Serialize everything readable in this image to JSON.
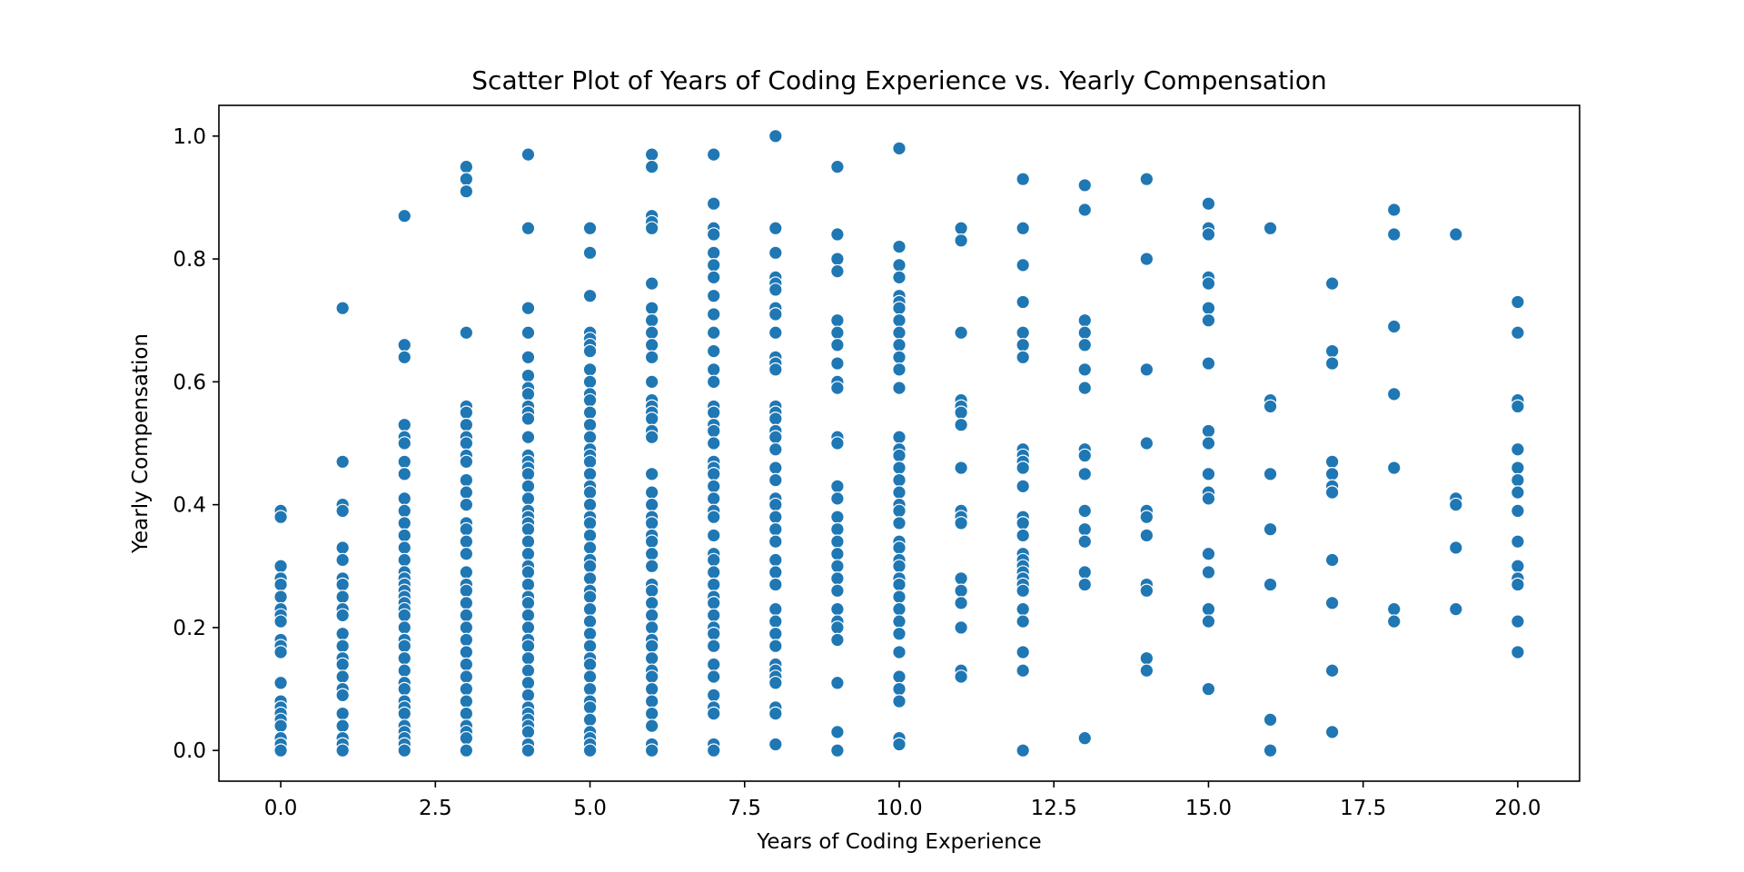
{
  "chart_data": {
    "type": "scatter",
    "title": "Scatter Plot of Years of Coding Experience vs. Yearly Compensation",
    "xlabel": "Years of Coding Experience",
    "ylabel": "Yearly Compensation",
    "xlim": [
      -1,
      21
    ],
    "ylim": [
      -0.05,
      1.05
    ],
    "x_ticks": [
      0.0,
      2.5,
      5.0,
      7.5,
      10.0,
      12.5,
      15.0,
      17.5,
      20.0
    ],
    "x_tick_labels": [
      "0.0",
      "2.5",
      "5.0",
      "7.5",
      "10.0",
      "12.5",
      "15.0",
      "17.5",
      "20.0"
    ],
    "y_ticks": [
      0.0,
      0.2,
      0.4,
      0.6,
      0.8,
      1.0
    ],
    "y_tick_labels": [
      "0.0",
      "0.2",
      "0.4",
      "0.6",
      "0.8",
      "1.0"
    ],
    "grid": false,
    "marker_color": "#1f77b4",
    "marker_edge_color": "#ffffff",
    "points_by_x": [
      {
        "x": 0,
        "y": [
          0.39,
          0.38,
          0.3,
          0.28,
          0.27,
          0.25,
          0.23,
          0.22,
          0.21,
          0.18,
          0.17,
          0.16,
          0.11,
          0.08,
          0.07,
          0.06,
          0.05,
          0.04,
          0.02,
          0.01,
          0.0
        ]
      },
      {
        "x": 1,
        "y": [
          0.72,
          0.47,
          0.4,
          0.39,
          0.33,
          0.31,
          0.28,
          0.27,
          0.25,
          0.23,
          0.22,
          0.19,
          0.17,
          0.15,
          0.14,
          0.12,
          0.1,
          0.09,
          0.06,
          0.04,
          0.02,
          0.01,
          0.0
        ]
      },
      {
        "x": 2,
        "y": [
          0.87,
          0.66,
          0.64,
          0.53,
          0.51,
          0.5,
          0.47,
          0.45,
          0.41,
          0.39,
          0.37,
          0.35,
          0.33,
          0.31,
          0.29,
          0.28,
          0.27,
          0.26,
          0.25,
          0.24,
          0.23,
          0.22,
          0.2,
          0.18,
          0.17,
          0.15,
          0.13,
          0.11,
          0.1,
          0.08,
          0.07,
          0.06,
          0.04,
          0.03,
          0.02,
          0.01,
          0.0
        ]
      },
      {
        "x": 3,
        "y": [
          0.95,
          0.93,
          0.91,
          0.68,
          0.56,
          0.55,
          0.53,
          0.51,
          0.5,
          0.48,
          0.47,
          0.44,
          0.42,
          0.4,
          0.37,
          0.36,
          0.34,
          0.32,
          0.29,
          0.27,
          0.26,
          0.24,
          0.22,
          0.2,
          0.18,
          0.16,
          0.14,
          0.12,
          0.1,
          0.08,
          0.06,
          0.04,
          0.03,
          0.02,
          0.0
        ]
      },
      {
        "x": 4,
        "y": [
          0.97,
          0.85,
          0.72,
          0.68,
          0.64,
          0.61,
          0.59,
          0.58,
          0.56,
          0.55,
          0.54,
          0.51,
          0.48,
          0.47,
          0.46,
          0.45,
          0.43,
          0.41,
          0.39,
          0.38,
          0.37,
          0.36,
          0.34,
          0.32,
          0.3,
          0.29,
          0.27,
          0.25,
          0.24,
          0.22,
          0.2,
          0.18,
          0.17,
          0.15,
          0.13,
          0.11,
          0.09,
          0.07,
          0.06,
          0.05,
          0.04,
          0.03,
          0.01,
          0.0
        ]
      },
      {
        "x": 5,
        "y": [
          0.85,
          0.81,
          0.74,
          0.68,
          0.67,
          0.66,
          0.65,
          0.62,
          0.6,
          0.58,
          0.57,
          0.55,
          0.53,
          0.51,
          0.49,
          0.48,
          0.47,
          0.45,
          0.43,
          0.42,
          0.4,
          0.38,
          0.37,
          0.35,
          0.33,
          0.31,
          0.3,
          0.28,
          0.26,
          0.25,
          0.23,
          0.21,
          0.19,
          0.17,
          0.15,
          0.14,
          0.12,
          0.1,
          0.08,
          0.07,
          0.05,
          0.03,
          0.02,
          0.01,
          0.0
        ]
      },
      {
        "x": 6,
        "y": [
          0.97,
          0.95,
          0.87,
          0.86,
          0.85,
          0.76,
          0.72,
          0.7,
          0.68,
          0.66,
          0.64,
          0.6,
          0.57,
          0.56,
          0.55,
          0.54,
          0.52,
          0.51,
          0.45,
          0.42,
          0.4,
          0.38,
          0.37,
          0.35,
          0.34,
          0.32,
          0.3,
          0.27,
          0.26,
          0.24,
          0.22,
          0.2,
          0.18,
          0.17,
          0.15,
          0.13,
          0.12,
          0.1,
          0.08,
          0.06,
          0.04,
          0.01,
          0.0
        ]
      },
      {
        "x": 7,
        "y": [
          0.97,
          0.89,
          0.85,
          0.84,
          0.81,
          0.79,
          0.77,
          0.74,
          0.71,
          0.68,
          0.65,
          0.62,
          0.6,
          0.56,
          0.55,
          0.53,
          0.52,
          0.5,
          0.47,
          0.46,
          0.45,
          0.43,
          0.41,
          0.39,
          0.38,
          0.35,
          0.32,
          0.31,
          0.29,
          0.27,
          0.25,
          0.24,
          0.22,
          0.2,
          0.19,
          0.17,
          0.14,
          0.12,
          0.09,
          0.07,
          0.06,
          0.01,
          0.0
        ]
      },
      {
        "x": 8,
        "y": [
          1.0,
          0.85,
          0.81,
          0.77,
          0.76,
          0.75,
          0.72,
          0.71,
          0.68,
          0.64,
          0.63,
          0.62,
          0.56,
          0.55,
          0.54,
          0.52,
          0.51,
          0.49,
          0.46,
          0.44,
          0.41,
          0.4,
          0.38,
          0.36,
          0.34,
          0.31,
          0.29,
          0.27,
          0.23,
          0.21,
          0.19,
          0.17,
          0.14,
          0.13,
          0.12,
          0.11,
          0.07,
          0.06,
          0.01
        ]
      },
      {
        "x": 9,
        "y": [
          0.95,
          0.84,
          0.8,
          0.78,
          0.7,
          0.68,
          0.66,
          0.63,
          0.6,
          0.59,
          0.51,
          0.5,
          0.43,
          0.41,
          0.38,
          0.36,
          0.34,
          0.32,
          0.3,
          0.28,
          0.26,
          0.23,
          0.21,
          0.2,
          0.18,
          0.11,
          0.03,
          0.0
        ]
      },
      {
        "x": 10,
        "y": [
          0.98,
          0.82,
          0.79,
          0.77,
          0.74,
          0.73,
          0.72,
          0.7,
          0.68,
          0.66,
          0.64,
          0.62,
          0.59,
          0.51,
          0.49,
          0.48,
          0.46,
          0.44,
          0.42,
          0.4,
          0.39,
          0.37,
          0.34,
          0.33,
          0.31,
          0.3,
          0.28,
          0.27,
          0.25,
          0.23,
          0.21,
          0.19,
          0.16,
          0.12,
          0.1,
          0.08,
          0.02,
          0.01
        ]
      },
      {
        "x": 11,
        "y": [
          0.85,
          0.83,
          0.68,
          0.57,
          0.56,
          0.55,
          0.53,
          0.46,
          0.39,
          0.38,
          0.37,
          0.28,
          0.26,
          0.24,
          0.2,
          0.13,
          0.12
        ]
      },
      {
        "x": 12,
        "y": [
          0.93,
          0.85,
          0.79,
          0.73,
          0.68,
          0.66,
          0.64,
          0.49,
          0.48,
          0.47,
          0.46,
          0.43,
          0.38,
          0.37,
          0.35,
          0.32,
          0.31,
          0.3,
          0.29,
          0.28,
          0.27,
          0.26,
          0.23,
          0.21,
          0.16,
          0.13,
          0.0
        ]
      },
      {
        "x": 13,
        "y": [
          0.92,
          0.88,
          0.7,
          0.68,
          0.66,
          0.62,
          0.59,
          0.49,
          0.48,
          0.45,
          0.39,
          0.36,
          0.34,
          0.29,
          0.27,
          0.02,
          0.02
        ]
      },
      {
        "x": 14,
        "y": [
          0.93,
          0.8,
          0.62,
          0.5,
          0.39,
          0.38,
          0.35,
          0.27,
          0.26,
          0.15,
          0.13
        ]
      },
      {
        "x": 15,
        "y": [
          0.89,
          0.85,
          0.84,
          0.77,
          0.76,
          0.72,
          0.7,
          0.63,
          0.52,
          0.5,
          0.45,
          0.42,
          0.41,
          0.32,
          0.29,
          0.23,
          0.21,
          0.1
        ]
      },
      {
        "x": 16,
        "y": [
          0.85,
          0.57,
          0.56,
          0.45,
          0.36,
          0.27,
          0.05,
          0.0
        ]
      },
      {
        "x": 17,
        "y": [
          0.76,
          0.65,
          0.63,
          0.47,
          0.45,
          0.43,
          0.42,
          0.31,
          0.24,
          0.13,
          0.03
        ]
      },
      {
        "x": 18,
        "y": [
          0.88,
          0.84,
          0.69,
          0.58,
          0.46,
          0.23,
          0.21
        ]
      },
      {
        "x": 19,
        "y": [
          0.84,
          0.41,
          0.4,
          0.33,
          0.23
        ]
      },
      {
        "x": 20,
        "y": [
          0.73,
          0.68,
          0.57,
          0.56,
          0.49,
          0.46,
          0.44,
          0.42,
          0.39,
          0.34,
          0.3,
          0.28,
          0.27,
          0.21,
          0.16
        ]
      }
    ]
  }
}
